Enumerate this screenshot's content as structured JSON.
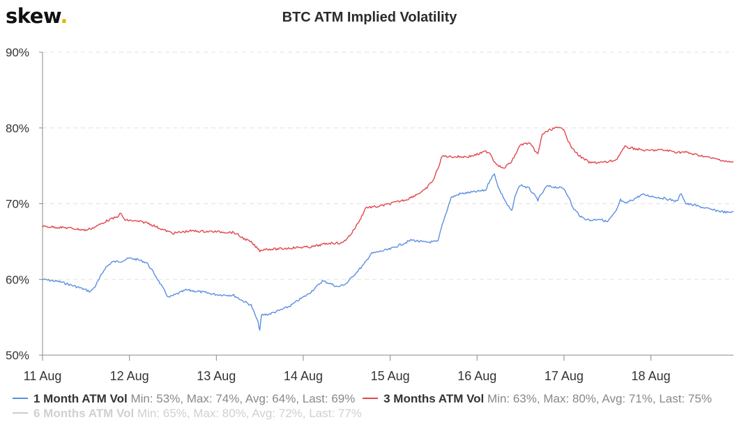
{
  "brand": {
    "name": "skew",
    "dot": "."
  },
  "colors": {
    "series1": "#5b8ee0",
    "series2": "#e0474f",
    "series3": "#cccccc",
    "grid": "#e2e2e2",
    "axis": "#888888",
    "tick_text": "#333333"
  },
  "chart_data": {
    "type": "line",
    "title": "BTC ATM Implied Volatility",
    "xlabel": "",
    "ylabel": "",
    "ylim": [
      50,
      90
    ],
    "yticks": [
      "50%",
      "60%",
      "70%",
      "80%",
      "90%"
    ],
    "ytick_values": [
      50,
      60,
      70,
      80,
      90
    ],
    "xlim": [
      11,
      18.95
    ],
    "xticks": [
      "11 Aug",
      "12 Aug",
      "13 Aug",
      "14 Aug",
      "15 Aug",
      "16 Aug",
      "17 Aug",
      "18 Aug"
    ],
    "xtick_values": [
      11,
      12,
      13,
      14,
      15,
      16,
      17,
      18
    ],
    "grid": true,
    "legend_position": "bottom-left",
    "series": [
      {
        "name": "1 Month ATM Vol",
        "stats": "Min: 53%, Max: 74%, Avg: 64%, Last: 69%",
        "visible": true,
        "points": [
          [
            11.0,
            60.0
          ],
          [
            11.2,
            59.7
          ],
          [
            11.4,
            59.0
          ],
          [
            11.55,
            58.4
          ],
          [
            11.6,
            59.0
          ],
          [
            11.65,
            60.0
          ],
          [
            11.72,
            61.5
          ],
          [
            11.8,
            62.3
          ],
          [
            11.9,
            62.4
          ],
          [
            12.0,
            62.8
          ],
          [
            12.1,
            62.6
          ],
          [
            12.2,
            62.2
          ],
          [
            12.3,
            60.5
          ],
          [
            12.35,
            59.5
          ],
          [
            12.45,
            57.6
          ],
          [
            12.55,
            58.1
          ],
          [
            12.65,
            58.6
          ],
          [
            12.8,
            58.4
          ],
          [
            13.0,
            58.0
          ],
          [
            13.2,
            57.9
          ],
          [
            13.3,
            57.2
          ],
          [
            13.4,
            56.6
          ],
          [
            13.45,
            55.2
          ],
          [
            13.48,
            54.3
          ],
          [
            13.5,
            53.3
          ],
          [
            13.52,
            55.3
          ],
          [
            13.6,
            55.4
          ],
          [
            13.75,
            56.0
          ],
          [
            13.85,
            56.5
          ],
          [
            13.95,
            57.3
          ],
          [
            14.05,
            58.0
          ],
          [
            14.15,
            59.0
          ],
          [
            14.22,
            59.8
          ],
          [
            14.3,
            59.5
          ],
          [
            14.4,
            59.0
          ],
          [
            14.5,
            59.5
          ],
          [
            14.6,
            60.8
          ],
          [
            14.7,
            62.0
          ],
          [
            14.78,
            63.4
          ],
          [
            14.85,
            63.6
          ],
          [
            15.0,
            64.0
          ],
          [
            15.1,
            64.5
          ],
          [
            15.25,
            65.2
          ],
          [
            15.4,
            64.9
          ],
          [
            15.55,
            65.0
          ],
          [
            15.6,
            67.3
          ],
          [
            15.65,
            69.0
          ],
          [
            15.7,
            70.8
          ],
          [
            15.8,
            71.3
          ],
          [
            16.0,
            71.6
          ],
          [
            16.1,
            71.8
          ],
          [
            16.15,
            73.2
          ],
          [
            16.2,
            73.9
          ],
          [
            16.25,
            72.0
          ],
          [
            16.3,
            70.9
          ],
          [
            16.35,
            69.8
          ],
          [
            16.4,
            69.0
          ],
          [
            16.45,
            71.5
          ],
          [
            16.5,
            72.5
          ],
          [
            16.6,
            72.0
          ],
          [
            16.7,
            70.5
          ],
          [
            16.8,
            72.3
          ],
          [
            16.9,
            72.2
          ],
          [
            17.0,
            72.0
          ],
          [
            17.05,
            71.0
          ],
          [
            17.1,
            69.5
          ],
          [
            17.2,
            68.2
          ],
          [
            17.3,
            67.8
          ],
          [
            17.4,
            68.0
          ],
          [
            17.5,
            67.6
          ],
          [
            17.6,
            69.0
          ],
          [
            17.65,
            70.5
          ],
          [
            17.7,
            70.0
          ],
          [
            17.8,
            70.6
          ],
          [
            17.9,
            71.2
          ],
          [
            18.0,
            71.0
          ],
          [
            18.1,
            70.8
          ],
          [
            18.2,
            70.6
          ],
          [
            18.3,
            70.3
          ],
          [
            18.35,
            71.4
          ],
          [
            18.4,
            70.0
          ],
          [
            18.5,
            69.8
          ],
          [
            18.6,
            69.5
          ],
          [
            18.7,
            69.2
          ],
          [
            18.8,
            69.0
          ],
          [
            18.9,
            68.8
          ],
          [
            18.95,
            69.0
          ]
        ]
      },
      {
        "name": "3 Months ATM Vol",
        "stats": "Min: 63%, Max: 80%, Avg: 71%, Last: 75%",
        "visible": true,
        "points": [
          [
            11.0,
            67.0
          ],
          [
            11.3,
            66.8
          ],
          [
            11.5,
            66.5
          ],
          [
            11.6,
            66.9
          ],
          [
            11.75,
            67.8
          ],
          [
            11.85,
            68.2
          ],
          [
            11.9,
            68.7
          ],
          [
            11.95,
            67.8
          ],
          [
            12.0,
            67.8
          ],
          [
            12.2,
            67.5
          ],
          [
            12.4,
            66.5
          ],
          [
            12.5,
            66.1
          ],
          [
            12.7,
            66.4
          ],
          [
            13.0,
            66.3
          ],
          [
            13.2,
            66.2
          ],
          [
            13.3,
            65.5
          ],
          [
            13.4,
            64.9
          ],
          [
            13.5,
            63.8
          ],
          [
            13.55,
            64.0
          ],
          [
            13.7,
            64.0
          ],
          [
            13.9,
            64.2
          ],
          [
            14.1,
            64.3
          ],
          [
            14.3,
            64.8
          ],
          [
            14.45,
            64.8
          ],
          [
            14.55,
            66.0
          ],
          [
            14.65,
            67.8
          ],
          [
            14.72,
            69.5
          ],
          [
            14.85,
            69.6
          ],
          [
            15.0,
            70.0
          ],
          [
            15.2,
            70.6
          ],
          [
            15.4,
            71.8
          ],
          [
            15.5,
            73.2
          ],
          [
            15.55,
            74.7
          ],
          [
            15.6,
            76.3
          ],
          [
            15.7,
            76.2
          ],
          [
            15.9,
            76.2
          ],
          [
            16.0,
            76.5
          ],
          [
            16.1,
            76.9
          ],
          [
            16.15,
            76.7
          ],
          [
            16.2,
            75.5
          ],
          [
            16.3,
            74.6
          ],
          [
            16.4,
            75.6
          ],
          [
            16.5,
            77.8
          ],
          [
            16.6,
            78.0
          ],
          [
            16.7,
            76.5
          ],
          [
            16.75,
            79.2
          ],
          [
            16.85,
            79.8
          ],
          [
            16.9,
            80.0
          ],
          [
            17.0,
            79.9
          ],
          [
            17.05,
            78.2
          ],
          [
            17.1,
            77.2
          ],
          [
            17.2,
            76.1
          ],
          [
            17.3,
            75.4
          ],
          [
            17.5,
            75.5
          ],
          [
            17.6,
            75.8
          ],
          [
            17.7,
            77.5
          ],
          [
            17.8,
            77.3
          ],
          [
            17.95,
            77.0
          ],
          [
            18.1,
            77.1
          ],
          [
            18.2,
            77.0
          ],
          [
            18.3,
            76.8
          ],
          [
            18.4,
            76.8
          ],
          [
            18.5,
            76.5
          ],
          [
            18.6,
            76.3
          ],
          [
            18.7,
            76.0
          ],
          [
            18.8,
            75.8
          ],
          [
            18.9,
            75.5
          ],
          [
            18.95,
            75.5
          ]
        ]
      },
      {
        "name": "6 Months ATM Vol",
        "stats": "Min: 65%, Max: 80%, Avg: 72%, Last: 77%",
        "visible": false,
        "points": []
      }
    ]
  }
}
